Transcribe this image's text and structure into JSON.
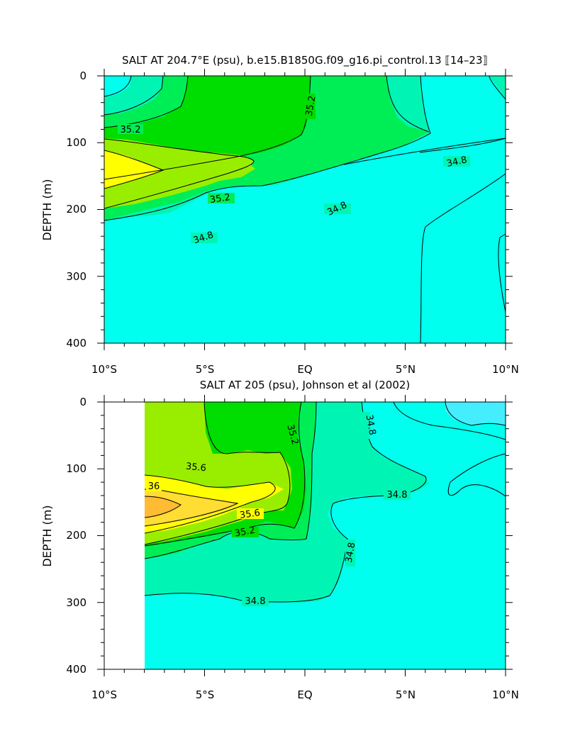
{
  "chart_data": [
    {
      "type": "contour",
      "title": "SALT AT 204.7°E (psu), b.e15.B1850G.f09_g16.pi_control.13 ⟦14–23⟧",
      "ylabel": "DEPTH (m)",
      "xlim": [
        -10,
        10
      ],
      "ylim": [
        400,
        0
      ],
      "x_ticks": [
        "10°S",
        "5°S",
        "EQ",
        "5°N",
        "10°N"
      ],
      "y_ticks": [
        "0",
        "100",
        "200",
        "300",
        "400"
      ],
      "contour_labels": [
        "35.2",
        "35.2",
        "35.2",
        "34.8",
        "34.8",
        "34.8"
      ],
      "salinity_classes": [
        {
          "range": "< 34.8",
          "color": "#00ffee"
        },
        {
          "range": "34.8–35.0",
          "color": "#00f5b4"
        },
        {
          "range": "35.0–35.2",
          "color": "#00ee55"
        },
        {
          "range": "35.2–35.4",
          "color": "#00dd00"
        },
        {
          "range": "35.4–35.6",
          "color": "#99ee00"
        },
        {
          "range": "35.6–35.8",
          "color": "#ffff00"
        }
      ]
    },
    {
      "type": "contour",
      "title": "SALT AT 205 (psu), Johnson et al (2002)",
      "ylabel": "DEPTH (m)",
      "xlim": [
        -10,
        10
      ],
      "ylim": [
        400,
        0
      ],
      "x_ticks": [
        "10°S",
        "5°S",
        "EQ",
        "5°N",
        "10°N"
      ],
      "y_ticks": [
        "0",
        "100",
        "200",
        "300",
        "400"
      ],
      "contour_labels": [
        "35.2",
        "34.8",
        "34.8",
        "35.6",
        "36",
        "35.6",
        "35.2",
        "34.8",
        "34.8"
      ],
      "salinity_classes": [
        {
          "range": "< 34.6",
          "color": "#44eeff"
        },
        {
          "range": "34.6–34.8",
          "color": "#00ffee"
        },
        {
          "range": "34.8–35.0",
          "color": "#00f5b4"
        },
        {
          "range": "35.0–35.2",
          "color": "#00ee55"
        },
        {
          "range": "35.2–35.4",
          "color": "#00dd00"
        },
        {
          "range": "35.4–35.6",
          "color": "#99ee00"
        },
        {
          "range": "35.6–35.8",
          "color": "#ffff00"
        },
        {
          "range": "35.8–36.0",
          "color": "#ffdd33"
        },
        {
          "range": "> 36.0",
          "color": "#ffbb33"
        }
      ]
    }
  ]
}
